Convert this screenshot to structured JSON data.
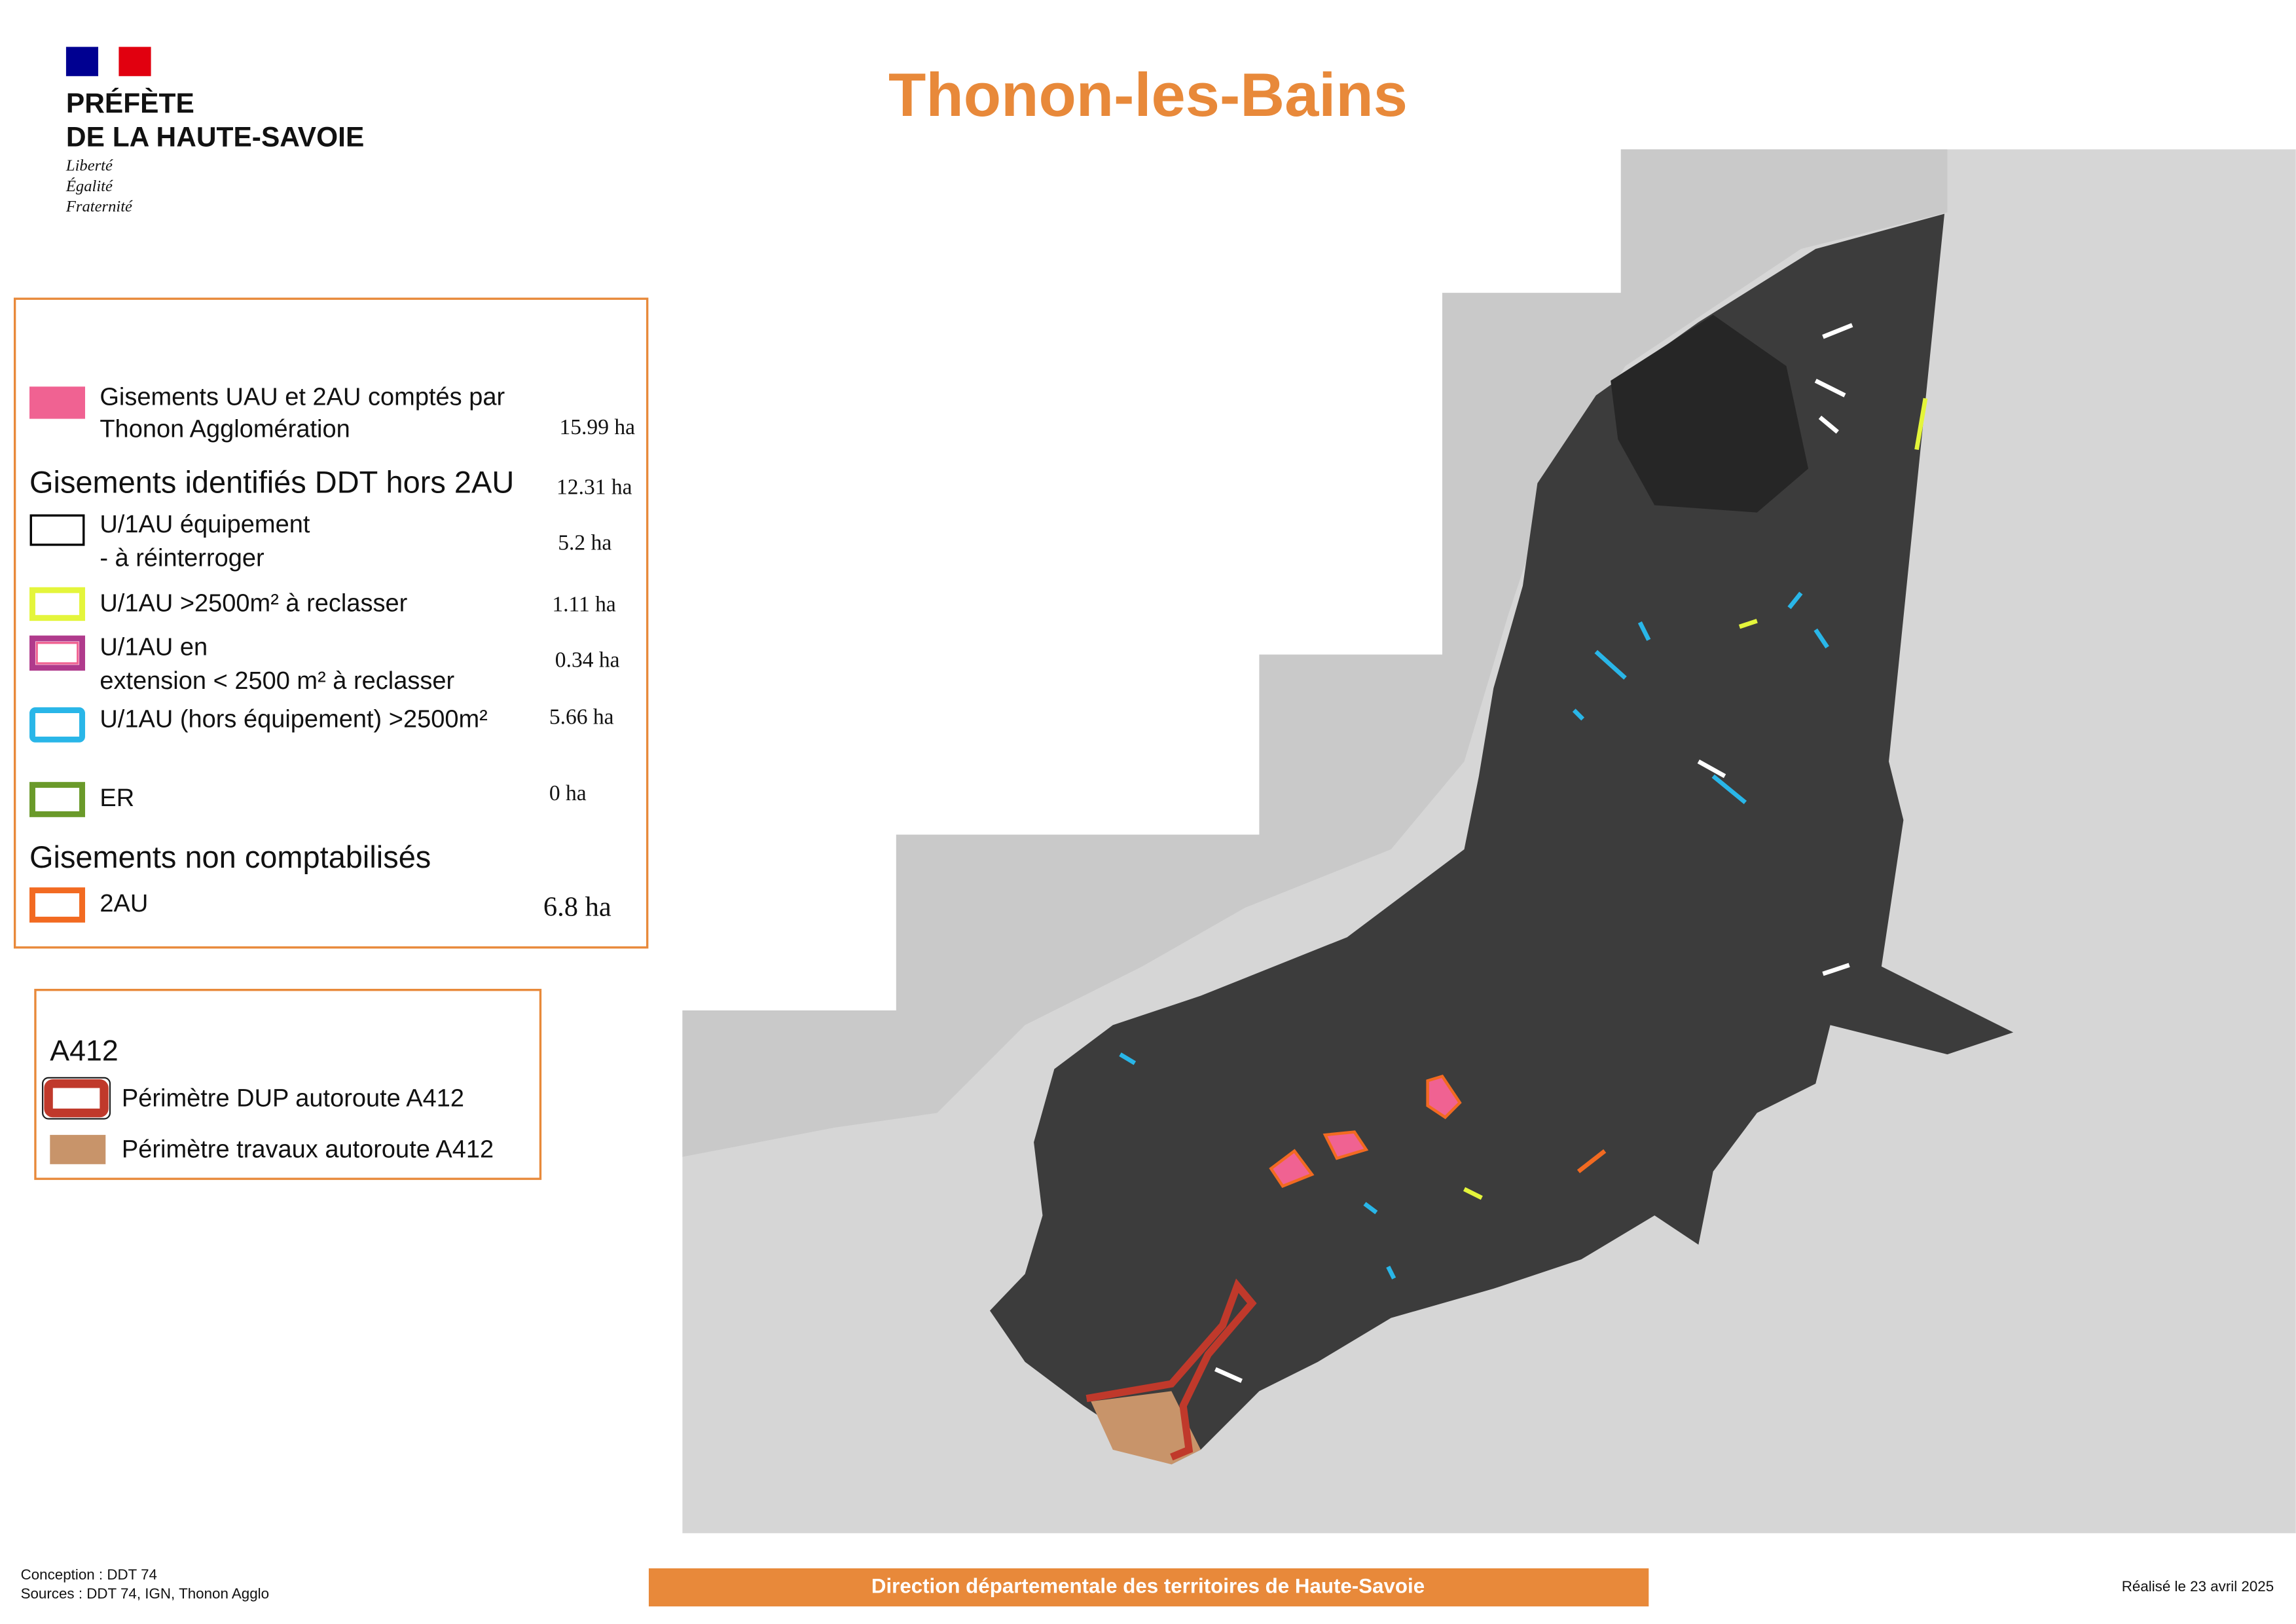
{
  "header": {
    "institution": [
      "PRÉFÈTE",
      "DE LA HAUTE-SAVOIE"
    ],
    "motto": [
      "Liberté",
      "Égalité",
      "Fraternité"
    ],
    "title": "Thonon-les-Bains"
  },
  "legend": {
    "items": [
      {
        "label": [
          "Gisements UAU et 2AU comptés par",
          "Thonon Agglomération"
        ],
        "value": "15.99 ha"
      },
      {
        "heading": "Gisements identifiés DDT hors 2AU",
        "value": "12.31 ha"
      },
      {
        "label": [
          "U/1AU équipement",
          "- à réinterroger"
        ],
        "value": "5.2 ha"
      },
      {
        "label": [
          "U/1AU >2500m²  à reclasser"
        ],
        "value": "1.11 ha"
      },
      {
        "label": [
          "U/1AU en",
          "extension  < 2500 m² à reclasser"
        ],
        "value": "0.34 ha"
      },
      {
        "label": [
          "U/1AU (hors équipement) >2500m²"
        ],
        "value": "5.66 ha"
      },
      {
        "label": [
          "ER"
        ],
        "value": "0 ha"
      },
      {
        "heading": "Gisements non comptabilisés"
      },
      {
        "label": [
          "2AU"
        ],
        "value": "6.8 ha"
      }
    ]
  },
  "legend_a412": {
    "title": "A412",
    "items": [
      "Périmètre DUP autoroute A412",
      "Périmètre travaux autoroute A412"
    ]
  },
  "footer": {
    "credits": [
      "Conception : DDT 74",
      "Sources : DDT 74, IGN, Thonon Agglo"
    ],
    "banner": "Direction départementale des territoires de Haute-Savoie",
    "date": "Réalisé le 23 avril 2025"
  }
}
